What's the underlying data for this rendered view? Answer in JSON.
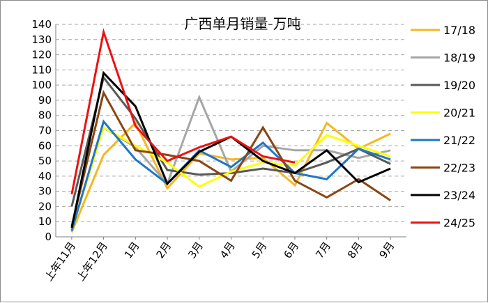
{
  "chart_data": {
    "type": "line",
    "title": "广西单月销量-万吨",
    "xlabel": "",
    "ylabel": "",
    "categories": [
      "上年11月",
      "上年12月",
      "1月",
      "2月",
      "3月",
      "4月",
      "5月",
      "6月",
      "7月",
      "8月",
      "9月"
    ],
    "ylim": [
      0,
      140
    ],
    "yticks": [
      0,
      10,
      20,
      30,
      40,
      50,
      60,
      70,
      80,
      90,
      100,
      110,
      120,
      130,
      140
    ],
    "grid": "horizontal dashed",
    "legend_position": "right",
    "series": [
      {
        "name": "17/18",
        "color": "#f5b821",
        "values": [
          3,
          54,
          75,
          32,
          55,
          51,
          52,
          34,
          75,
          58,
          68
        ]
      },
      {
        "name": "18/19",
        "color": "#a6a6a6",
        "values": [
          5,
          72,
          59,
          35,
          92,
          43,
          60,
          57,
          57,
          52,
          57
        ]
      },
      {
        "name": "19/20",
        "color": "#595959",
        "values": [
          20,
          105,
          78,
          44,
          41,
          42,
          45,
          42,
          49,
          58,
          48
        ]
      },
      {
        "name": "20/21",
        "color": "#ffff00",
        "values": [
          5,
          72,
          60,
          49,
          33,
          43,
          49,
          47,
          67,
          60,
          53
        ]
      },
      {
        "name": "21/22",
        "color": "#1f77c8",
        "values": [
          4,
          76,
          51,
          35,
          57,
          46,
          62,
          42,
          38,
          58,
          51
        ]
      },
      {
        "name": "22/23",
        "color": "#8b4513",
        "values": [
          7,
          95,
          57,
          54,
          50,
          37,
          72,
          37,
          26,
          38,
          24
        ]
      },
      {
        "name": "23/24",
        "color": "#000000",
        "values": [
          6,
          108,
          86,
          35,
          56,
          66,
          50,
          42,
          57,
          36,
          45
        ]
      },
      {
        "name": "24/25",
        "color": "#ee1111",
        "values": [
          28,
          135,
          73,
          50,
          59,
          66,
          53,
          49,
          null,
          null,
          null
        ]
      }
    ]
  }
}
